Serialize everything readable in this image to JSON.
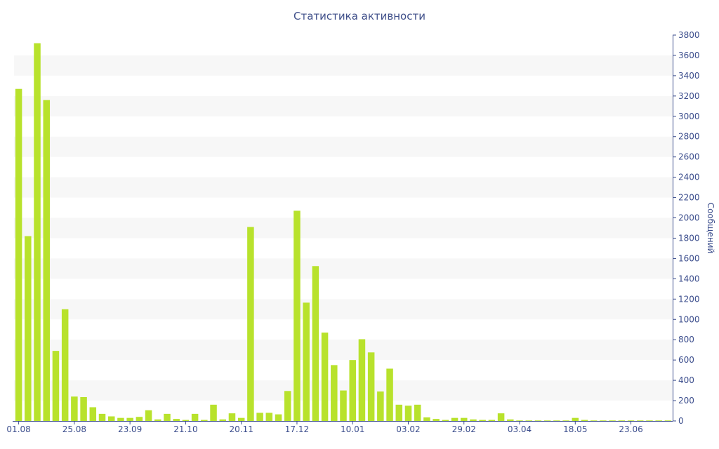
{
  "colors": {
    "bar": "#b8e22c",
    "band": "#f7f7f7",
    "axis": "#3b4d8c",
    "title": "#40508a"
  },
  "chart_data": {
    "type": "bar",
    "title": "Статистика активности",
    "ylabel": "Сообщений",
    "xlabel": "",
    "y_axis_side": "right",
    "ylim": [
      0,
      3800
    ],
    "y_ticks": [
      0,
      200,
      400,
      600,
      800,
      1000,
      1200,
      1400,
      1600,
      1800,
      2000,
      2200,
      2400,
      2600,
      2800,
      3000,
      3200,
      3400,
      3600,
      3800
    ],
    "grid": "alternating horizontal bands",
    "x_tick_labels": [
      {
        "index": 0,
        "label": "01.08"
      },
      {
        "index": 6,
        "label": "25.08"
      },
      {
        "index": 12,
        "label": "23.09"
      },
      {
        "index": 18,
        "label": "21.10"
      },
      {
        "index": 24,
        "label": "20.11"
      },
      {
        "index": 30,
        "label": "17.12"
      },
      {
        "index": 36,
        "label": "10.01"
      },
      {
        "index": 42,
        "label": "03.02"
      },
      {
        "index": 48,
        "label": "29.02"
      },
      {
        "index": 54,
        "label": "03.04"
      },
      {
        "index": 60,
        "label": "18.05"
      },
      {
        "index": 66,
        "label": "23.06"
      }
    ],
    "values": [
      3270,
      1820,
      3720,
      3160,
      690,
      1100,
      240,
      235,
      135,
      70,
      45,
      30,
      30,
      40,
      105,
      15,
      70,
      20,
      10,
      70,
      10,
      160,
      15,
      75,
      30,
      1910,
      80,
      80,
      65,
      295,
      2070,
      1165,
      1525,
      870,
      550,
      300,
      600,
      805,
      675,
      290,
      515,
      160,
      150,
      160,
      35,
      20,
      10,
      30,
      30,
      15,
      10,
      10,
      75,
      15,
      5,
      5,
      5,
      5,
      5,
      5,
      30,
      10,
      5,
      5,
      5,
      5,
      5,
      5,
      5,
      5,
      5
    ]
  }
}
